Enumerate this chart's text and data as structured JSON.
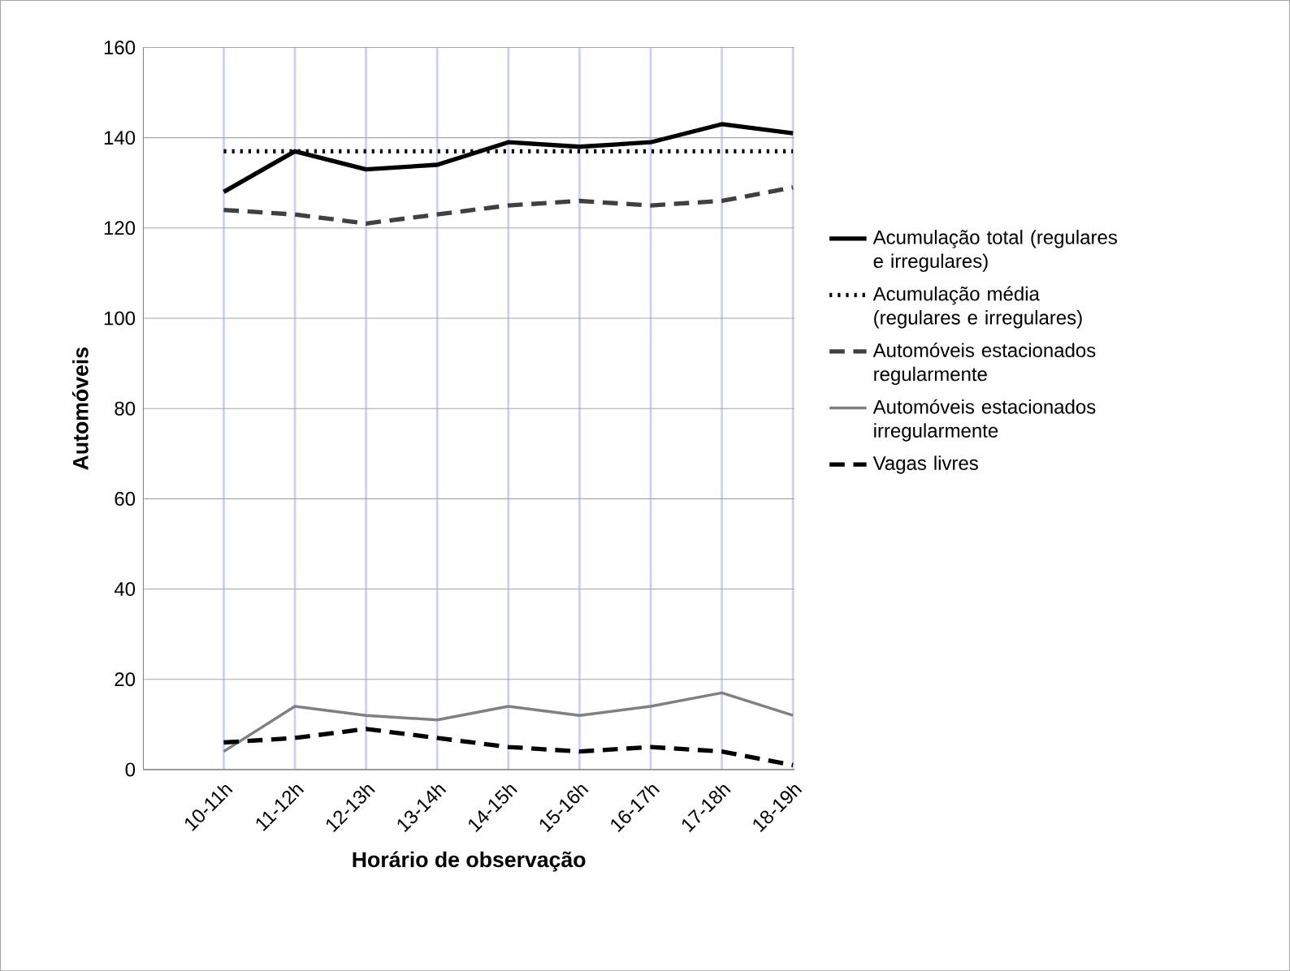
{
  "chart_data": {
    "type": "line",
    "xlabel": "Horário de observação",
    "ylabel": "Automóveis",
    "categories": [
      "10-11h",
      "11-12h",
      "12-13h",
      "13-14h",
      "14-15h",
      "15-16h",
      "16-17h",
      "17-18h",
      "18-19h"
    ],
    "ylim": [
      0,
      160
    ],
    "yticks": [
      0,
      20,
      40,
      60,
      80,
      100,
      120,
      140,
      160
    ],
    "grid": true,
    "legend": "right",
    "marker": "none",
    "series": [
      {
        "name": "Acumulação total (regulares e irregulares)",
        "color": "#000000",
        "line_style": "solid",
        "values": [
          128,
          137,
          133,
          134,
          139,
          138,
          139,
          143,
          141
        ]
      },
      {
        "name": "Acumulação média (regulares e irregulares)",
        "color": "#000000",
        "line_style": "dotted",
        "values": [
          137,
          137,
          137,
          137,
          137,
          137,
          137,
          137,
          137
        ]
      },
      {
        "name": "Automóveis estacionados regularmente",
        "color": "#404040",
        "line_style": "dashed",
        "values": [
          124,
          123,
          121,
          123,
          125,
          126,
          125,
          126,
          129
        ]
      },
      {
        "name": "Automóveis estacionados irregularmente",
        "color": "#808080",
        "line_style": "solid",
        "values": [
          4,
          14,
          12,
          11,
          14,
          12,
          14,
          17,
          12
        ]
      },
      {
        "name": "Vagas livres",
        "color": "#000000",
        "line_style": "dashed",
        "values": [
          6,
          7,
          9,
          7,
          5,
          4,
          5,
          4,
          1
        ]
      }
    ]
  }
}
